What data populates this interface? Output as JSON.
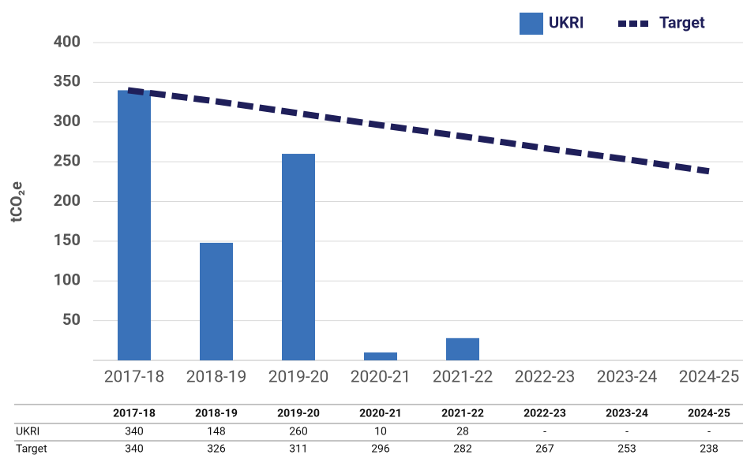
{
  "chart_data": {
    "type": "bar",
    "y_label": "tCO₂e",
    "categories": [
      "2017-18",
      "2018-19",
      "2019-20",
      "2020-21",
      "2021-22",
      "2022-23",
      "2023-24",
      "2024-25"
    ],
    "series": [
      {
        "name": "UKRI",
        "type": "bar",
        "color": "#3a72b9",
        "values": [
          340,
          148,
          260,
          10,
          28,
          null,
          null,
          null
        ],
        "value_labels": [
          "340",
          "148",
          "260",
          "10",
          "28",
          "-",
          "-",
          "-"
        ]
      },
      {
        "name": "Target",
        "type": "line",
        "dashed": true,
        "color": "#1f1f5a",
        "values": [
          340,
          326,
          311,
          296,
          282,
          267,
          253,
          238
        ]
      }
    ],
    "ylim": [
      0,
      400
    ],
    "yticks": [
      50,
      100,
      150,
      200,
      250,
      300,
      350,
      400
    ],
    "grid": true,
    "legend": "top-right"
  }
}
